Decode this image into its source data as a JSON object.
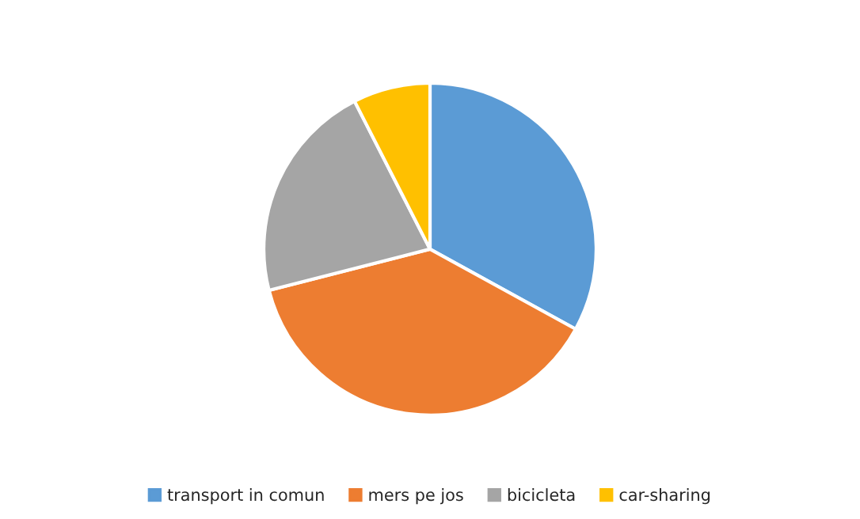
{
  "chart_data": {
    "type": "pie",
    "categories": [
      "transport in comun",
      "mers pe jos",
      "bicicleta",
      "car-sharing"
    ],
    "values": [
      33,
      38,
      21.5,
      7.5
    ],
    "colors": [
      "#5b9bd5",
      "#ed7d31",
      "#a5a5a5",
      "#ffc000"
    ],
    "legend": "bottom"
  }
}
